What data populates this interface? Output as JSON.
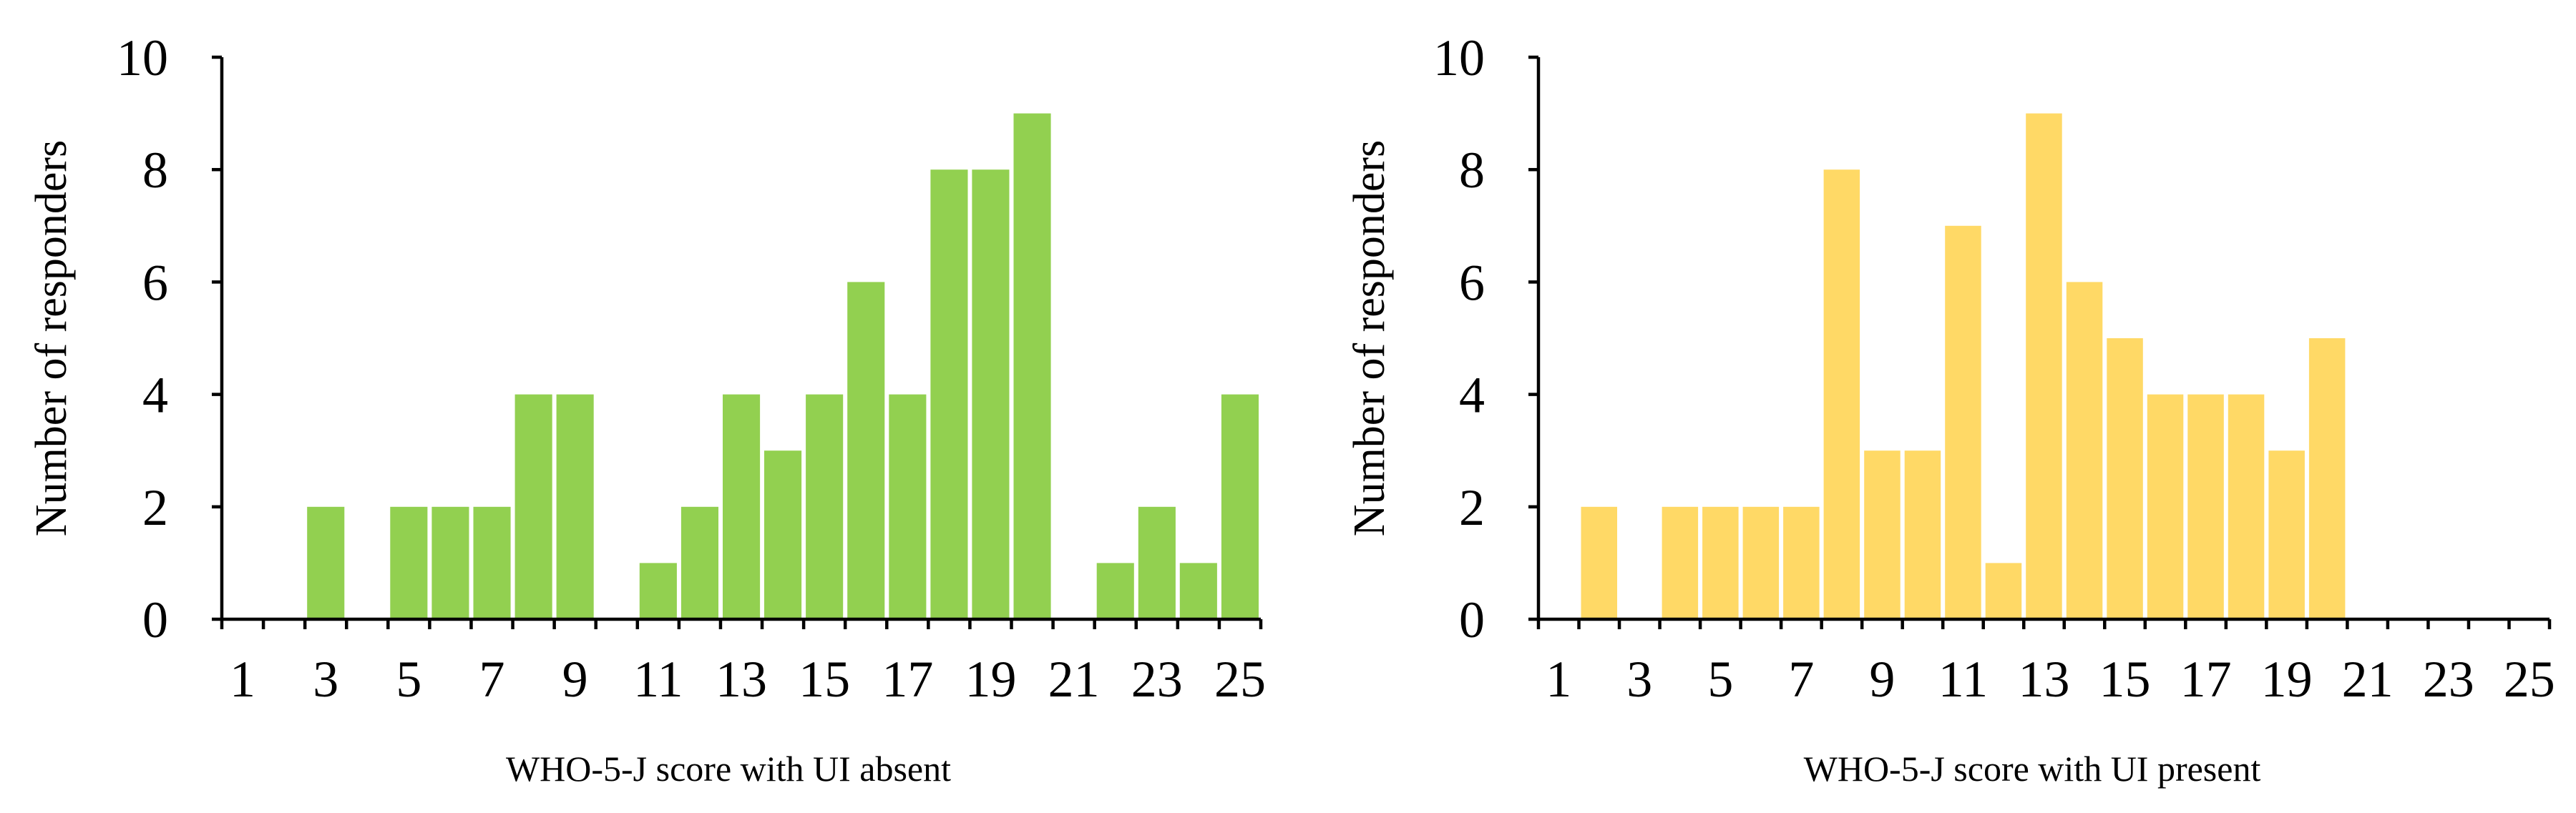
{
  "chart_data": [
    {
      "type": "bar",
      "xlabel": "WHO-5-J score with UI absent",
      "ylabel": "Number of responders",
      "color": "#92d050",
      "ylim": [
        0,
        10
      ],
      "yticks": [
        "0",
        "2",
        "4",
        "6",
        "8",
        "10"
      ],
      "xticks": [
        "1",
        "3",
        "5",
        "7",
        "9",
        "11",
        "13",
        "15",
        "17",
        "19",
        "21",
        "23",
        "25"
      ],
      "x": [
        1,
        2,
        3,
        4,
        5,
        6,
        7,
        8,
        9,
        10,
        11,
        12,
        13,
        14,
        15,
        16,
        17,
        18,
        19,
        20,
        21,
        22,
        23,
        24,
        25
      ],
      "values": [
        0,
        0,
        2,
        0,
        2,
        2,
        2,
        4,
        4,
        0,
        1,
        2,
        4,
        3,
        4,
        6,
        4,
        8,
        8,
        9,
        0,
        1,
        2,
        1,
        4
      ]
    },
    {
      "type": "bar",
      "xlabel": "WHO-5-J score with UI present",
      "ylabel": "Number of responders",
      "color": "#ffd966",
      "ylim": [
        0,
        10
      ],
      "yticks": [
        "0",
        "2",
        "4",
        "6",
        "8",
        "10"
      ],
      "xticks": [
        "1",
        "3",
        "5",
        "7",
        "9",
        "11",
        "13",
        "15",
        "17",
        "19",
        "21",
        "23",
        "25"
      ],
      "x": [
        1,
        2,
        3,
        4,
        5,
        6,
        7,
        8,
        9,
        10,
        11,
        12,
        13,
        14,
        15,
        16,
        17,
        18,
        19,
        20,
        21,
        22,
        23,
        24,
        25
      ],
      "values": [
        0,
        2,
        0,
        2,
        2,
        2,
        2,
        8,
        3,
        3,
        7,
        1,
        9,
        6,
        5,
        4,
        4,
        4,
        3,
        5,
        0,
        0,
        0,
        0,
        0
      ]
    }
  ]
}
